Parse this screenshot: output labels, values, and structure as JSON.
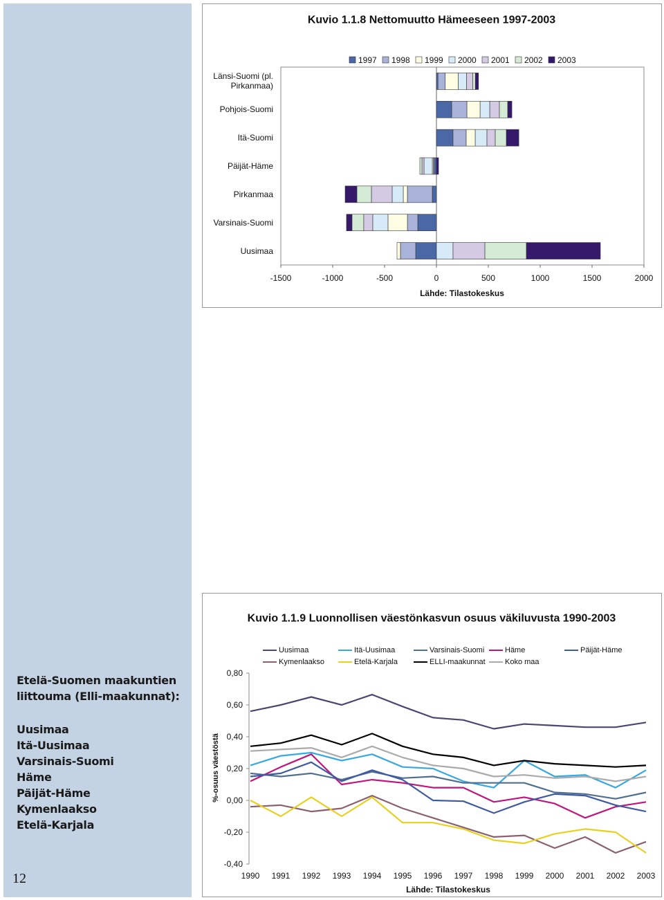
{
  "sidebar": {
    "heading": "Etelä-Suomen maakuntien liittouma (Elli-maakunnat):",
    "items": [
      "Uusimaa",
      "Itä-Uusimaa",
      "Varsinais-Suomi",
      "Häme",
      "Päijät-Häme",
      "Kymenlaakso",
      "Etelä-Karjala"
    ],
    "page_number": 12
  },
  "chart_data": [
    {
      "type": "bar",
      "orientation": "horizontal",
      "stacked": true,
      "title": "Kuvio 1.1.8 Nettomuutto Hämeeseen 1997-2003",
      "categories": [
        "Länsi-Suomi (pl. Pirkanmaa)",
        "Pohjois-Suomi",
        "Itä-Suomi",
        "Päijät-Häme",
        "Pirkanmaa",
        "Varsinais-Suomi",
        "Uusimaa"
      ],
      "series": [
        {
          "name": "1997",
          "color": "#4a67a6",
          "values": [
            15,
            147,
            160,
            -20,
            -40,
            -180,
            -200
          ]
        },
        {
          "name": "1998",
          "color": "#a9b2d9",
          "values": [
            70,
            147,
            127,
            -10,
            -240,
            -100,
            -147
          ]
        },
        {
          "name": "1999",
          "color": "#fffde3",
          "values": [
            125,
            127,
            87,
            -10,
            -40,
            -187,
            -33
          ]
        },
        {
          "name": "2000",
          "color": "#d7eaf8",
          "values": [
            80,
            93,
            113,
            -80,
            -107,
            -147,
            160
          ]
        },
        {
          "name": "2001",
          "color": "#d4cae3",
          "values": [
            60,
            93,
            80,
            -20,
            -200,
            -87,
            307
          ]
        },
        {
          "name": "2002",
          "color": "#d5eBd5",
          "values": [
            25,
            80,
            107,
            -20,
            -140,
            -113,
            400
          ]
        },
        {
          "name": "2003",
          "color": "#35196b",
          "values": [
            30,
            40,
            120,
            20,
            -113,
            -53,
            713
          ]
        }
      ],
      "xlim": [
        -1500,
        2000
      ],
      "xticks": [
        -1500,
        -1000,
        -500,
        0,
        500,
        1000,
        1500,
        2000
      ],
      "source": "Lähde: Tilastokeskus"
    },
    {
      "type": "line",
      "title": "Kuvio 1.1.9 Luonnollisen väestönkasvun osuus väkiluvusta 1990-2003",
      "y_label": "%-osuus väestöstä",
      "categories": [
        "1990",
        "1991",
        "1992",
        "1993",
        "1994",
        "1995",
        "1996",
        "1997",
        "1998",
        "1999",
        "2000",
        "2001",
        "2002",
        "2003"
      ],
      "series": [
        {
          "name": "Uusimaa",
          "color": "#4b4570",
          "values": [
            0.56,
            0.6,
            0.65,
            0.6,
            0.665,
            0.59,
            0.52,
            0.505,
            0.45,
            0.48,
            0.47,
            0.46,
            0.46,
            0.49
          ]
        },
        {
          "name": "Itä-Uusimaa",
          "color": "#38a8e0",
          "values": [
            0.22,
            0.28,
            0.3,
            0.25,
            0.29,
            0.21,
            0.2,
            0.12,
            0.08,
            0.25,
            0.15,
            0.16,
            0.08,
            0.19
          ]
        },
        {
          "name": "Varsinais-Suomi",
          "color": "#4f6f8f",
          "values": [
            0.17,
            0.15,
            0.17,
            0.13,
            0.18,
            0.14,
            0.15,
            0.11,
            0.11,
            0.11,
            0.05,
            0.04,
            0.01,
            0.05
          ]
        },
        {
          "name": "Häme",
          "color": "#c0157a",
          "values": [
            0.12,
            0.21,
            0.29,
            0.1,
            0.13,
            0.11,
            0.08,
            0.08,
            -0.01,
            0.02,
            -0.02,
            -0.11,
            -0.04,
            -0.01
          ]
        },
        {
          "name": "Päijät-Häme",
          "color": "#3e5aa0",
          "values": [
            0.15,
            0.17,
            0.24,
            0.12,
            0.19,
            0.13,
            0.0,
            -0.005,
            -0.08,
            -0.01,
            0.04,
            0.03,
            -0.03,
            -0.07
          ]
        },
        {
          "name": "Kymenlaakso",
          "color": "#8a6070",
          "values": [
            -0.04,
            -0.03,
            -0.07,
            -0.05,
            0.03,
            -0.05,
            -0.11,
            -0.17,
            -0.23,
            -0.22,
            -0.3,
            -0.23,
            -0.33,
            -0.26
          ]
        },
        {
          "name": "Etelä-Karjala",
          "color": "#e8d020",
          "values": [
            0.0,
            -0.1,
            0.02,
            -0.1,
            0.02,
            -0.14,
            -0.14,
            -0.18,
            -0.25,
            -0.27,
            -0.21,
            -0.18,
            -0.2,
            -0.33
          ]
        },
        {
          "name": "ELLI-maakunnat",
          "color": "#000000",
          "values": [
            0.34,
            0.36,
            0.41,
            0.35,
            0.42,
            0.34,
            0.29,
            0.27,
            0.22,
            0.25,
            0.23,
            0.22,
            0.21,
            0.22
          ]
        },
        {
          "name": "Koko maa",
          "color": "#aaaaaa",
          "values": [
            0.31,
            0.32,
            0.33,
            0.27,
            0.34,
            0.27,
            0.22,
            0.2,
            0.15,
            0.16,
            0.14,
            0.15,
            0.12,
            0.15
          ]
        }
      ],
      "ylim": [
        -0.4,
        0.8
      ],
      "yticks": [
        {
          "value": -0.4,
          "label": "-0,40"
        },
        {
          "value": -0.2,
          "label": "-0,20"
        },
        {
          "value": 0,
          "label": "0,00"
        },
        {
          "value": 0.2,
          "label": "0,20"
        },
        {
          "value": 0.4,
          "label": "0,40"
        },
        {
          "value": 0.6,
          "label": "0,60"
        },
        {
          "value": 0.8,
          "label": "0,80"
        }
      ],
      "source": "Lähde: Tilastokeskus"
    }
  ]
}
